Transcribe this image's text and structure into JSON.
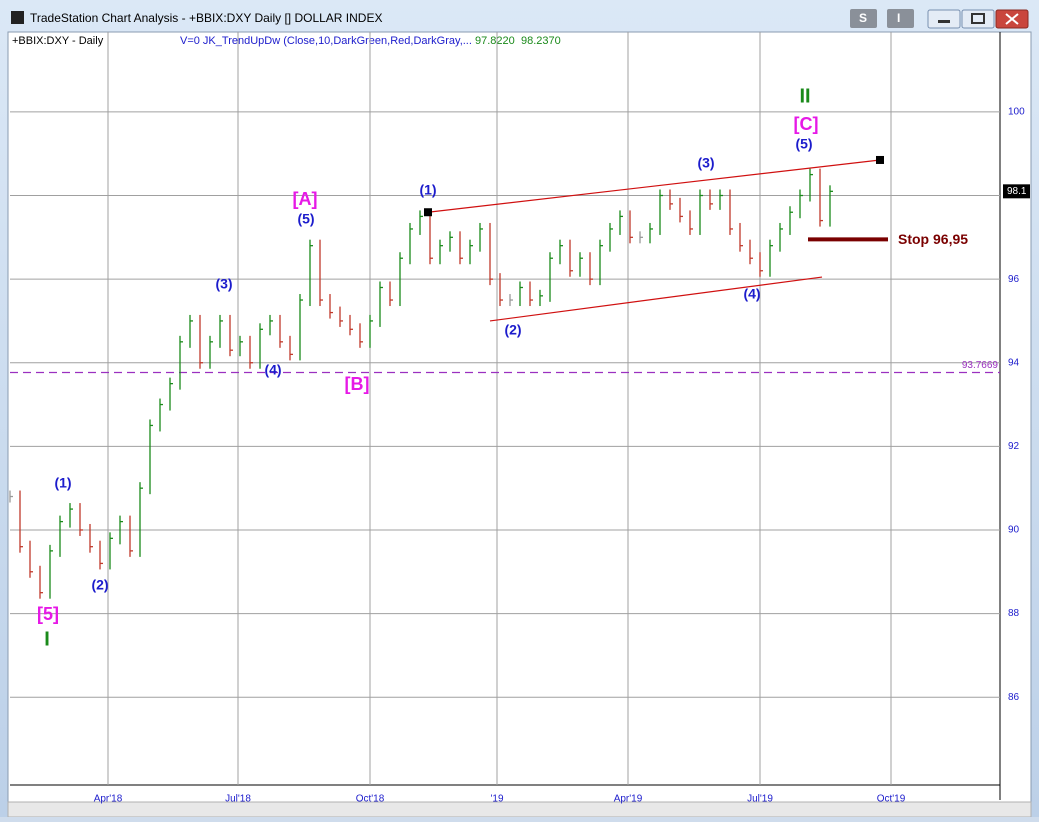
{
  "window": {
    "title": "TradeStation Chart Analysis - +BBIX:DXY Daily [] DOLLAR INDEX",
    "buttons": [
      "S",
      "I"
    ]
  },
  "chart_data": {
    "type": "bar",
    "symbol_label": "+BBIX:DXY - Daily",
    "indicator_label": "V=0  JK_TrendUpDw (Close,10,DarkGreen,Red,DarkGray,...",
    "indicator_values": [
      "97.8220",
      "98.2370"
    ],
    "categories": [
      null,
      null,
      null,
      null,
      null,
      null,
      null,
      null,
      null,
      null,
      null,
      null,
      null,
      null,
      null,
      null,
      null,
      null,
      null,
      null,
      null,
      null,
      null,
      null,
      null,
      null,
      null,
      null,
      null,
      null,
      null,
      null,
      null,
      null,
      null,
      null,
      null,
      null,
      null,
      null,
      null,
      null,
      null,
      null,
      null,
      null,
      null,
      null,
      null,
      null,
      null,
      null,
      null,
      null,
      null,
      null,
      null,
      null,
      null,
      null,
      null,
      null,
      null,
      null,
      null,
      null,
      null,
      null,
      null,
      null,
      null,
      null,
      null,
      null,
      null,
      null,
      null,
      null,
      null,
      null,
      null,
      null,
      null
    ],
    "values": [
      90.8,
      89.6,
      89.0,
      88.5,
      89.5,
      90.2,
      90.5,
      90.0,
      89.6,
      89.2,
      89.8,
      90.2,
      89.5,
      91.0,
      92.5,
      93.0,
      93.5,
      94.5,
      95.0,
      94.0,
      94.5,
      95.0,
      94.3,
      94.5,
      94.0,
      94.8,
      95.0,
      94.5,
      94.2,
      95.5,
      96.8,
      95.5,
      95.2,
      95.0,
      94.8,
      94.5,
      95.0,
      95.8,
      95.5,
      96.5,
      97.2,
      97.5,
      96.5,
      96.8,
      97.0,
      96.5,
      96.8,
      97.2,
      96.0,
      95.5,
      95.5,
      95.8,
      95.5,
      95.6,
      96.5,
      96.8,
      96.2,
      96.5,
      96.0,
      96.8,
      97.2,
      97.5,
      97.0,
      97.0,
      97.2,
      98.0,
      97.8,
      97.5,
      97.2,
      98.0,
      97.8,
      98.0,
      97.2,
      96.8,
      96.5,
      96.2,
      96.8,
      97.2,
      97.6,
      98.0,
      98.5,
      97.4,
      98.1
    ],
    "up_color": "#1a8a1a",
    "down_color": "#c0392b",
    "flat_color": "#999999",
    "xlim": [
      0,
      99
    ],
    "xticks": [
      {
        "value": 9.8,
        "label": "Apr'18"
      },
      {
        "value": 22.8,
        "label": "Jul'18"
      },
      {
        "value": 36,
        "label": "Oct'18"
      },
      {
        "value": 48.7,
        "label": "'19"
      },
      {
        "value": 61.8,
        "label": "Apr'19"
      },
      {
        "value": 75,
        "label": "Jul'19"
      },
      {
        "value": 88.1,
        "label": "Oct'19"
      }
    ],
    "ylim": [
      83.9,
      101.6
    ],
    "yticks": [
      86,
      88,
      90,
      92,
      94,
      96,
      98,
      100
    ],
    "grid": true,
    "last_price": {
      "value": 98.1,
      "label": "98.1"
    },
    "reference_line": {
      "value": 93.7669,
      "label": "93.7669",
      "color": "#9b30c0"
    },
    "stop_line": {
      "value": 96.95,
      "label": "Stop 96,95",
      "color": "#7a0000"
    },
    "trendlines": [
      {
        "x": [
          41.8,
          87
        ],
        "y": [
          97.6,
          98.85
        ],
        "color": "#d01010"
      },
      {
        "x": [
          48,
          81.2
        ],
        "y": [
          95.0,
          96.05
        ],
        "color": "#d01010"
      }
    ],
    "annotations": [
      {
        "text": "[5]",
        "color": "#e619e6"
      },
      {
        "text": "I",
        "color": "#1a8a1a"
      },
      {
        "text": "(1)",
        "color": "#1c1ccc"
      },
      {
        "text": "(2)",
        "color": "#1c1ccc"
      },
      {
        "text": "(3)",
        "color": "#1c1ccc"
      },
      {
        "text": "(4)",
        "color": "#1c1ccc"
      },
      {
        "text": "[A]",
        "color": "#e619e6"
      },
      {
        "text": "(5)",
        "color": "#1c1ccc"
      },
      {
        "text": "[B]",
        "color": "#e619e6"
      },
      {
        "text": "(1)",
        "color": "#1c1ccc"
      },
      {
        "text": "(2)",
        "color": "#1c1ccc"
      },
      {
        "text": "(3)",
        "color": "#1c1ccc"
      },
      {
        "text": "(4)",
        "color": "#1c1ccc"
      },
      {
        "text": "(5)",
        "color": "#1c1ccc"
      },
      {
        "text": "[C]",
        "color": "#e619e6"
      },
      {
        "text": "II",
        "color": "#1a8a1a"
      }
    ]
  }
}
